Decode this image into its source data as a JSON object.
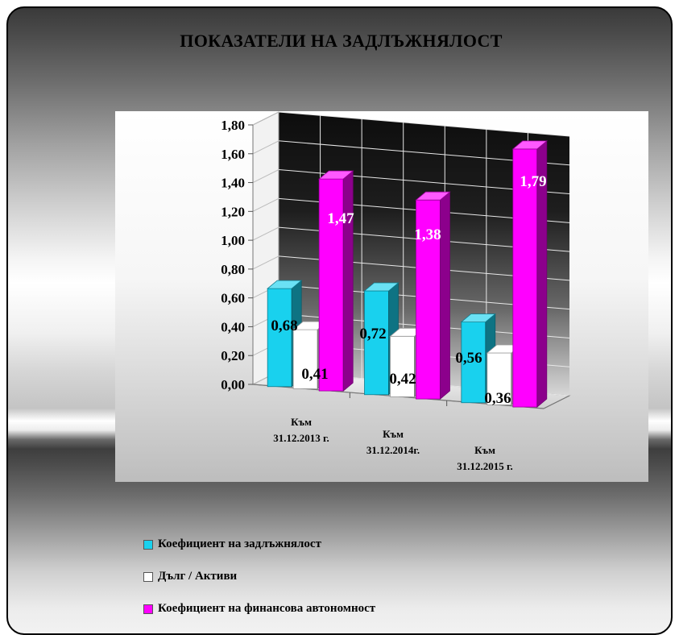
{
  "chart_data": {
    "type": "bar",
    "title": "ПОКАЗАТЕЛИ НА ЗАДЛЪЖНЯЛОСТ",
    "categories": [
      [
        "Към",
        "31.12.2013 г."
      ],
      [
        "Към",
        "31.12.2014г."
      ],
      [
        "Към",
        "31.12.2015 г."
      ]
    ],
    "series": [
      {
        "name": "Коефициент на задлъжнялост",
        "values": [
          0.68,
          0.72,
          0.56
        ],
        "labels": [
          "0,68",
          "0,72",
          "0,56"
        ],
        "color": "#19d1ee"
      },
      {
        "name": "Дълг / Активи",
        "values": [
          0.41,
          0.42,
          0.36
        ],
        "labels": [
          "0,41",
          "0,42",
          "0,36"
        ],
        "color": "#ffffff"
      },
      {
        "name": "Коефициент на финансова автономност",
        "values": [
          1.47,
          1.38,
          1.79
        ],
        "labels": [
          "1,47",
          "1,38",
          "1,79"
        ],
        "color": "#ff00ff"
      }
    ],
    "ylim": [
      0,
      1.8
    ],
    "yticks": [
      "0,00",
      "0,20",
      "0,40",
      "0,60",
      "0,80",
      "1,00",
      "1,20",
      "1,40",
      "1,60",
      "1,80"
    ],
    "grid": true,
    "legend_position": "bottom-left",
    "xlabel": "",
    "ylabel": ""
  }
}
